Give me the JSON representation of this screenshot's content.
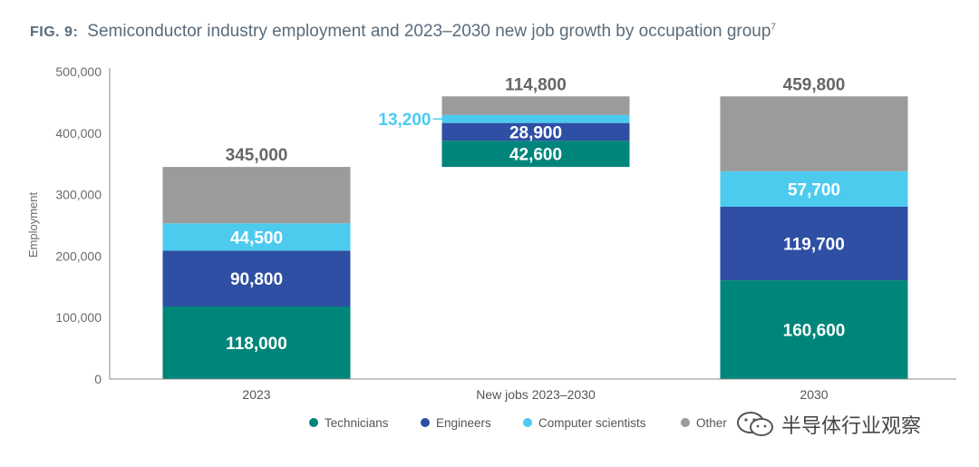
{
  "figure": {
    "label": "FIG. 9:",
    "title": "Semiconductor industry employment and 2023–2030 new job growth by occupation group",
    "footnote_mark": "7"
  },
  "chart_data": {
    "type": "bar",
    "stacked": true,
    "waterfall": true,
    "title": "Semiconductor industry employment and 2023–2030 new job growth by occupation group",
    "xlabel": "",
    "ylabel": "Employment",
    "ylim": [
      0,
      500000
    ],
    "yticks": [
      0,
      100000,
      200000,
      300000,
      400000,
      500000
    ],
    "ytick_labels": [
      "0",
      "100,000",
      "200,000",
      "300,000",
      "400,000",
      "500,000"
    ],
    "categories": [
      "2023",
      "New jobs 2023–2030",
      "2030"
    ],
    "bases": [
      0,
      345000,
      0
    ],
    "totals": [
      345000,
      114800,
      459800
    ],
    "total_labels": [
      "345,000",
      "114,800",
      "459,800"
    ],
    "series": [
      {
        "name": "Technicians",
        "color": "#00857a",
        "values": [
          118000,
          42600,
          160600
        ],
        "labels": [
          "118,000",
          "42,600",
          "160,600"
        ]
      },
      {
        "name": "Engineers",
        "color": "#2e4fa3",
        "values": [
          90800,
          28900,
          119700
        ],
        "labels": [
          "90,800",
          "28,900",
          "119,700"
        ]
      },
      {
        "name": "Computer scientists",
        "color": "#4ccbef",
        "values": [
          44500,
          13200,
          57700
        ],
        "labels": [
          "44,500",
          "13,200",
          "57,700"
        ]
      },
      {
        "name": "Other",
        "color": "#9b9b9b",
        "values": [
          91700,
          30100,
          121800
        ],
        "labels": [
          "",
          "",
          ""
        ]
      }
    ],
    "legend_position": "bottom",
    "grid": false
  },
  "watermark": {
    "text": "半导体行业观察",
    "icon": "wechat-icon"
  }
}
